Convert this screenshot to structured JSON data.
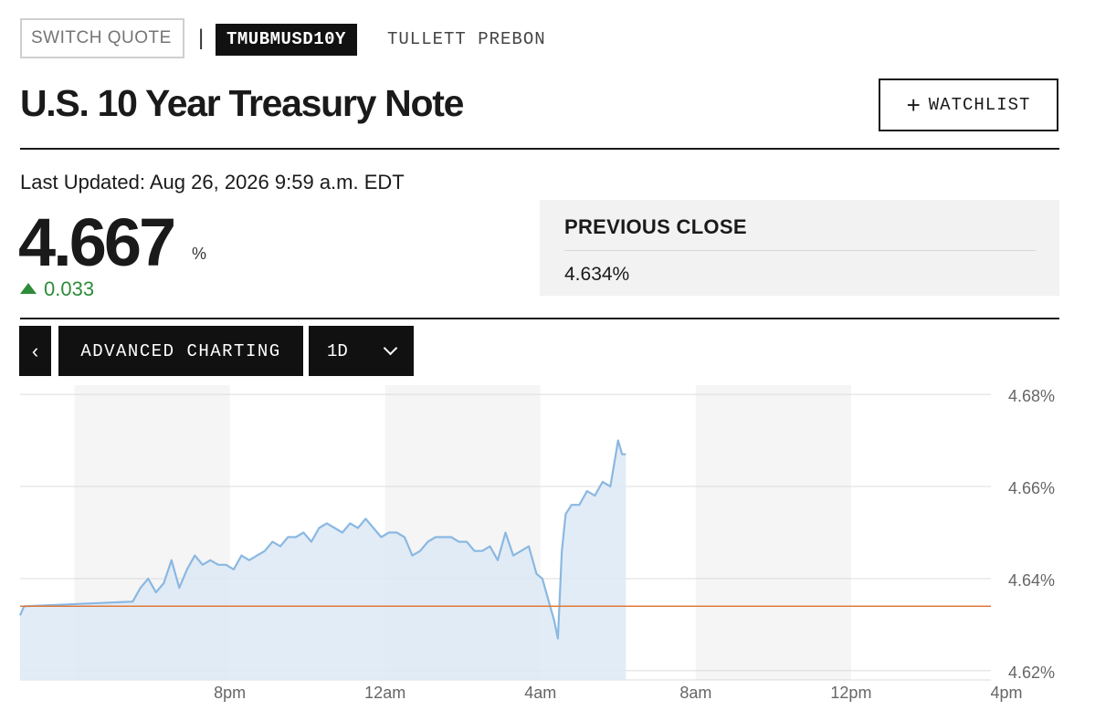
{
  "quote_bar": {
    "switch_placeholder": "SWITCH QUOTE",
    "separator": "|",
    "ticker": "TMUBMUSD10Y",
    "source": "TULLETT PREBON"
  },
  "header": {
    "title": "U.S. 10 Year Treasury Note",
    "watchlist_label": "WATCHLIST",
    "watchlist_icon": "plus-icon"
  },
  "quote": {
    "last_updated": "Last Updated: Aug 26, 2026 9:59 a.m. EDT",
    "price": "4.667",
    "unit": "%",
    "change": "0.033",
    "change_direction": "up",
    "change_color": "#2e8b3a"
  },
  "previous_close": {
    "label": "PREVIOUS CLOSE",
    "value": "4.634%"
  },
  "toolbar": {
    "back_icon": "chevron-left-icon",
    "advanced_label": "ADVANCED CHARTING",
    "range_label": "1D",
    "range_icon": "chevron-down-icon"
  },
  "chart_data": {
    "type": "area",
    "x_ticks": [
      "8pm",
      "12am",
      "4am",
      "8am",
      "12pm",
      "4pm"
    ],
    "y_ticks": [
      "4.68%",
      "4.66%",
      "4.64%",
      "4.62%"
    ],
    "ylim": [
      4.618,
      4.682
    ],
    "xlim_hours": [
      -5.4,
      19.6
    ],
    "reference_line": {
      "label": "previous close",
      "value": 4.634,
      "color": "#e07a3a"
    },
    "series_color": "#8ab8e2",
    "fill_color": "#dde9f4",
    "shaded_bands": [
      [
        -4,
        0
      ],
      [
        4,
        8
      ],
      [
        12,
        16
      ]
    ],
    "x_hours": [
      -5.4,
      -5.3,
      -2.5,
      -2.3,
      -2.1,
      -1.9,
      -1.7,
      -1.5,
      -1.3,
      -1.1,
      -0.9,
      -0.7,
      -0.5,
      -0.3,
      -0.1,
      0.1,
      0.3,
      0.5,
      0.7,
      0.9,
      1.1,
      1.3,
      1.5,
      1.7,
      1.9,
      2.1,
      2.3,
      2.5,
      2.7,
      2.9,
      3.1,
      3.3,
      3.5,
      3.7,
      3.9,
      4.1,
      4.3,
      4.5,
      4.7,
      4.9,
      5.1,
      5.3,
      5.5,
      5.7,
      5.9,
      6.1,
      6.3,
      6.5,
      6.7,
      6.9,
      7.1,
      7.3,
      7.5,
      7.7,
      7.9,
      8.05,
      8.15,
      8.25,
      8.35,
      8.45,
      8.55,
      8.65,
      8.8,
      9.0,
      9.2,
      9.4,
      9.6,
      9.8,
      9.9,
      10.0,
      10.1,
      10.2
    ],
    "values": [
      4.632,
      4.634,
      4.635,
      4.638,
      4.64,
      4.637,
      4.639,
      4.644,
      4.638,
      4.642,
      4.645,
      4.643,
      4.644,
      4.643,
      4.643,
      4.642,
      4.645,
      4.644,
      4.645,
      4.646,
      4.648,
      4.647,
      4.649,
      4.649,
      4.65,
      4.648,
      4.651,
      4.652,
      4.651,
      4.65,
      4.652,
      4.651,
      4.653,
      4.651,
      4.649,
      4.65,
      4.65,
      4.649,
      4.645,
      4.646,
      4.648,
      4.649,
      4.649,
      4.649,
      4.648,
      4.648,
      4.646,
      4.646,
      4.647,
      4.644,
      4.65,
      4.645,
      4.646,
      4.647,
      4.641,
      4.64,
      4.637,
      4.634,
      4.631,
      4.627,
      4.646,
      4.654,
      4.656,
      4.656,
      4.659,
      4.658,
      4.661,
      4.66,
      4.665,
      4.67,
      4.667,
      4.667
    ]
  }
}
